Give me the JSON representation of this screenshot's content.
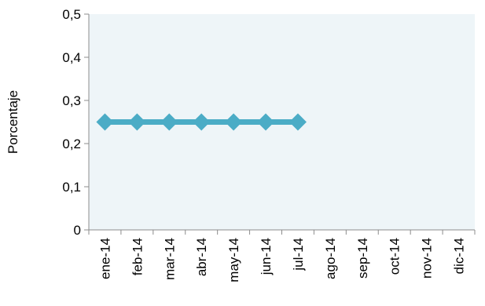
{
  "chart_data": {
    "type": "line",
    "title": "",
    "xlabel": "",
    "ylabel": "Porcentaje",
    "categories": [
      "ene-14",
      "feb-14",
      "mar-14",
      "abr-14",
      "may-14",
      "jun-14",
      "jul-14",
      "ago-14",
      "sep-14",
      "oct-14",
      "nov-14",
      "dic-14"
    ],
    "y_tick_labels": [
      "0",
      "0,1",
      "0,2",
      "0,3",
      "0,4",
      "0,5"
    ],
    "ylim": [
      0,
      0.5
    ],
    "grid": false,
    "legend": "none",
    "series": [
      {
        "values": [
          0.25,
          0.25,
          0.25,
          0.25,
          0.25,
          0.25,
          0.25,
          null,
          null,
          null,
          null,
          null
        ],
        "color": "#4bacc6"
      }
    ],
    "plot_background": "#eef5f8"
  }
}
